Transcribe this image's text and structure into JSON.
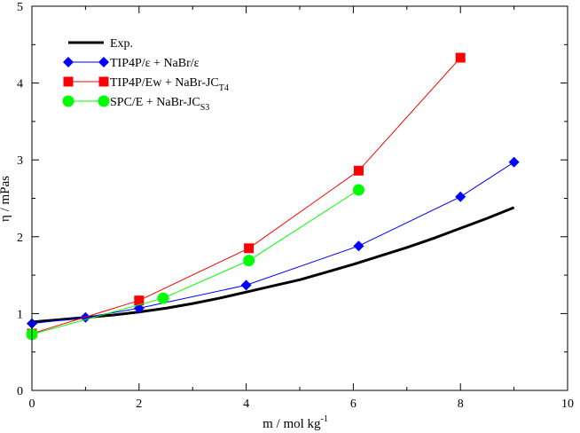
{
  "chart_data": {
    "type": "line",
    "xlabel": "m  /  mol kg",
    "xlabel_sup": "-1",
    "ylabel": "η  / mPas",
    "xlim": [
      0,
      10
    ],
    "ylim": [
      0,
      5
    ],
    "x_ticks": [
      0,
      2,
      4,
      6,
      8,
      10
    ],
    "y_ticks": [
      0,
      1,
      2,
      3,
      4,
      5
    ],
    "legend_position": "top-left",
    "series": [
      {
        "name": "Exp.",
        "legend": {
          "text": "Exp.",
          "sub": ""
        },
        "color": "#000000",
        "marker": "none",
        "x": [
          0,
          0.5,
          1,
          1.5,
          2,
          2.5,
          3,
          3.5,
          4,
          4.5,
          5,
          5.5,
          6,
          6.5,
          7,
          7.5,
          8,
          8.5,
          9
        ],
        "y": [
          0.89,
          0.92,
          0.95,
          0.98,
          1.02,
          1.07,
          1.13,
          1.2,
          1.28,
          1.36,
          1.44,
          1.54,
          1.64,
          1.75,
          1.86,
          1.98,
          2.11,
          2.24,
          2.38
        ]
      },
      {
        "name": "TIP4P/ε + NaBr/ε",
        "legend": {
          "text": "TIP4P/ε + NaBr/ε",
          "sub": ""
        },
        "color": "#0000ff",
        "marker": "diamond",
        "x": [
          0,
          1,
          2,
          4,
          6.1,
          8,
          9
        ],
        "y": [
          0.87,
          0.95,
          1.07,
          1.37,
          1.88,
          2.52,
          2.97
        ]
      },
      {
        "name": "TIP4P/Ew + NaBr-JC T4",
        "legend": {
          "text": "TIP4P/Ew + NaBr-JC",
          "sub": "T4"
        },
        "color": "#ff0000",
        "marker": "square",
        "x": [
          0,
          2,
          4.05,
          6.1,
          8
        ],
        "y": [
          0.74,
          1.17,
          1.85,
          2.86,
          4.33
        ]
      },
      {
        "name": "SPC/E + NaBr-JC S3",
        "legend": {
          "text": "SPC/E + NaBr-JC",
          "sub": "S3"
        },
        "color": "#00ff00",
        "marker": "circle",
        "x": [
          0,
          2.45,
          4.05,
          6.1
        ],
        "y": [
          0.73,
          1.2,
          1.69,
          2.61
        ]
      }
    ]
  }
}
